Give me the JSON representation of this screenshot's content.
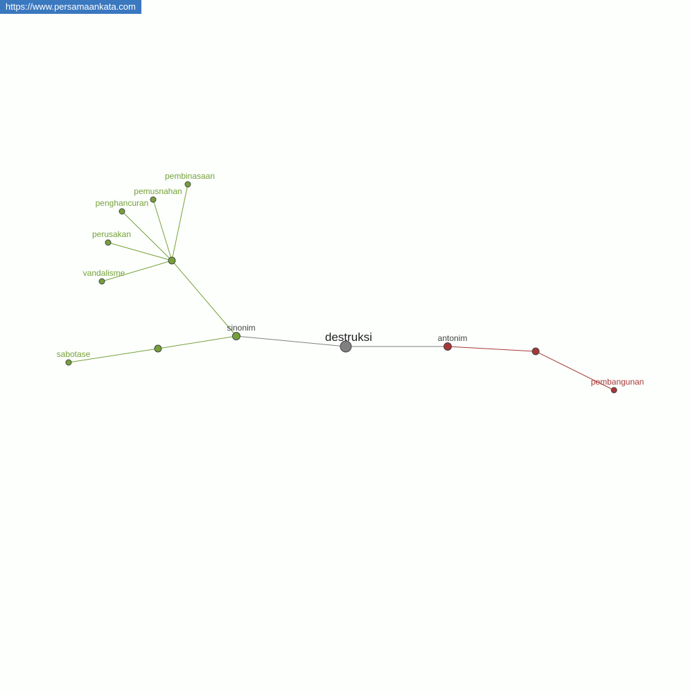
{
  "watermark": {
    "url": "https://www.persamaankata.com"
  },
  "graph": {
    "colors": {
      "center": "#808080",
      "synonym": "#76a03a",
      "antonym": "#a83838",
      "center_edge": "#808080"
    },
    "center": {
      "id": "destruksi",
      "label": "destruksi"
    },
    "groups": [
      {
        "id": "sinonim",
        "label": "sinonim",
        "type": "synonym"
      },
      {
        "id": "antonim",
        "label": "antonim",
        "type": "antonym"
      }
    ],
    "nodes": [
      {
        "id": "hub1",
        "label": "",
        "type": "synonym"
      },
      {
        "id": "hub2",
        "label": "",
        "type": "synonym"
      },
      {
        "id": "hub3",
        "label": "",
        "type": "antonym"
      },
      {
        "id": "pembinasaan",
        "label": "pembinasaan",
        "type": "synonym"
      },
      {
        "id": "pemusnahan",
        "label": "pemusnahan",
        "type": "synonym"
      },
      {
        "id": "penghancuran",
        "label": "penghancuran",
        "type": "synonym"
      },
      {
        "id": "perusakan",
        "label": "perusakan",
        "type": "synonym"
      },
      {
        "id": "vandalisme",
        "label": "vandalisme",
        "type": "synonym"
      },
      {
        "id": "sabotase",
        "label": "sabotase",
        "type": "synonym"
      },
      {
        "id": "pembangunan",
        "label": "pembangunan",
        "type": "antonym"
      }
    ],
    "edges": [
      [
        "destruksi",
        "sinonim"
      ],
      [
        "destruksi",
        "antonim"
      ],
      [
        "sinonim",
        "hub1"
      ],
      [
        "sinonim",
        "hub2"
      ],
      [
        "hub1",
        "pembinasaan"
      ],
      [
        "hub1",
        "pemusnahan"
      ],
      [
        "hub1",
        "penghancuran"
      ],
      [
        "hub1",
        "perusakan"
      ],
      [
        "hub1",
        "vandalisme"
      ],
      [
        "hub2",
        "sabotase"
      ],
      [
        "antonim",
        "hub3"
      ],
      [
        "hub3",
        "pembangunan"
      ]
    ]
  }
}
